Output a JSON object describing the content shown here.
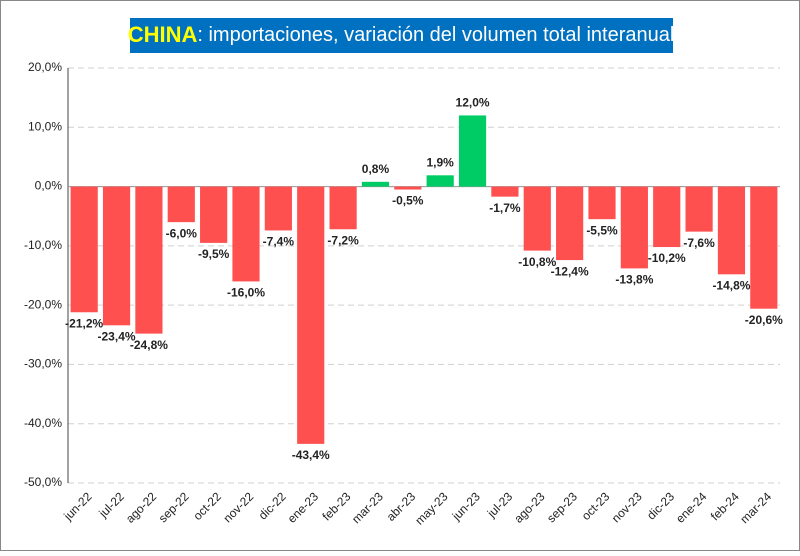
{
  "chart_data": {
    "type": "bar",
    "title_parts": [
      "CHINA",
      ": importaciones, variación del volumen total interanual"
    ],
    "categories": [
      "jun-22",
      "jul-22",
      "ago-22",
      "sep-22",
      "oct-22",
      "nov-22",
      "dic-22",
      "ene-23",
      "feb-23",
      "mar-23",
      "abr-23",
      "may-23",
      "jun-23",
      "jul-23",
      "ago-23",
      "sep-23",
      "oct-23",
      "nov-23",
      "dic-23",
      "ene-24",
      "feb-24",
      "mar-24"
    ],
    "values": [
      -21.2,
      -23.4,
      -24.8,
      -6.0,
      -9.5,
      -16.0,
      -7.4,
      -43.4,
      -7.2,
      0.8,
      -0.5,
      1.9,
      12.0,
      -1.7,
      -10.8,
      -12.4,
      -5.5,
      -13.8,
      -10.2,
      -7.6,
      -14.8,
      -20.6
    ],
    "value_labels": [
      "-21,2%",
      "-23,4%",
      "-24,8%",
      "-6,0%",
      "-9,5%",
      "-16,0%",
      "-7,4%",
      "-43,4%",
      "-7,2%",
      "0,8%",
      "-0,5%",
      "1,9%",
      "12,0%",
      "-1,7%",
      "-10,8%",
      "-12,4%",
      "-5,5%",
      "-13,8%",
      "-10,2%",
      "-7,6%",
      "-14,8%",
      "-20,6%"
    ],
    "positive_color": "#00cc66",
    "negative_color": "#ff5050",
    "ylim": [
      -50,
      20
    ],
    "yticks": [
      {
        "value": -50,
        "label": "-50,0%"
      },
      {
        "value": -40,
        "label": "-40,0%"
      },
      {
        "value": -30,
        "label": "-30,0%"
      },
      {
        "value": -20,
        "label": "-20,0%"
      },
      {
        "value": -10,
        "label": "-10,0%"
      },
      {
        "value": 0,
        "label": "0,0%"
      },
      {
        "value": 10,
        "label": "10,0%"
      },
      {
        "value": 20,
        "label": "20,0%"
      }
    ],
    "grid": true
  }
}
